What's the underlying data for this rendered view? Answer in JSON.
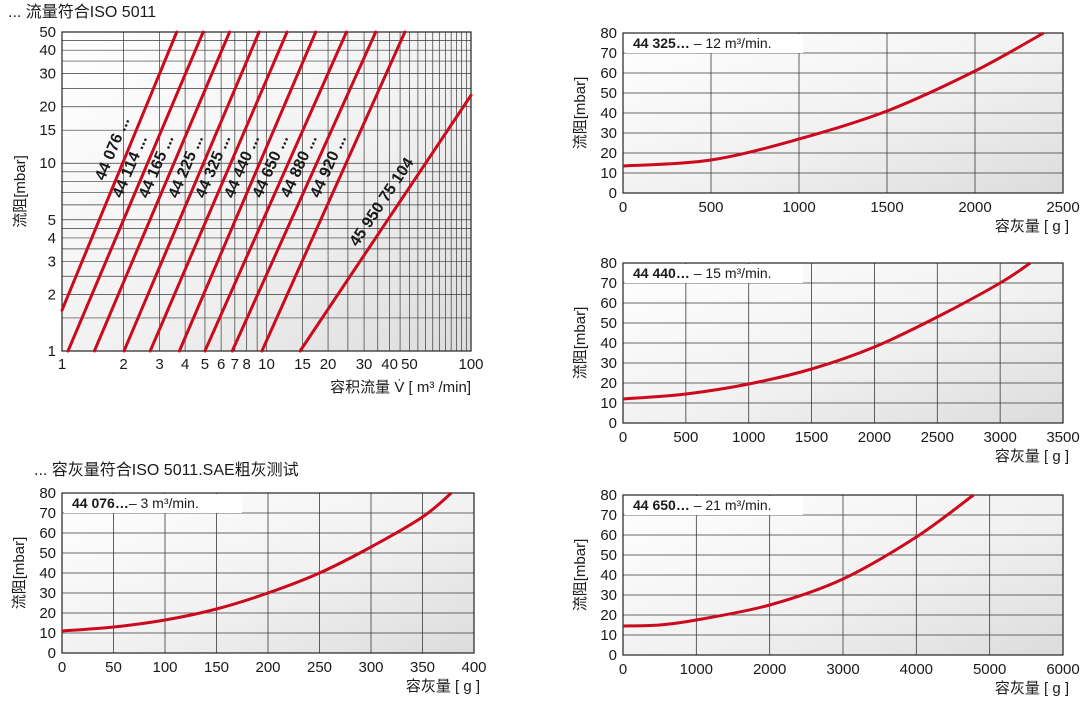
{
  "section_titles": {
    "top": "... 流量符合ISO 5011",
    "bottom": "... 容灰量符合ISO 5011.SAE粗灰测试"
  },
  "colors": {
    "curve": "#cc0a1e",
    "grid": "#3a3a3a",
    "panel_bg": "#e6e6e6"
  },
  "chart_data": [
    {
      "id": "flow",
      "type": "line",
      "scale": "log-log",
      "grid": true,
      "xlabel": "容积流量 V̇ [ m³ /min]",
      "ylabel": "流阻[mbar]",
      "xlim": [
        1,
        100
      ],
      "ylim": [
        1,
        50
      ],
      "x_ticks": [
        {
          "v": 1,
          "t": "1"
        },
        {
          "v": 2,
          "t": "2"
        },
        {
          "v": 3,
          "t": "3"
        },
        {
          "v": 4,
          "t": "4"
        },
        {
          "v": 5,
          "t": "5"
        },
        {
          "v": 6,
          "t": "6"
        },
        {
          "v": 7,
          "t": "7"
        },
        {
          "v": 8,
          "t": "8"
        },
        {
          "v": 10,
          "t": "10"
        },
        {
          "v": 15,
          "t": "15"
        },
        {
          "v": 20,
          "t": "20"
        },
        {
          "v": 30,
          "t": "30"
        },
        {
          "v": 40,
          "t": "40"
        },
        {
          "v": 50,
          "t": "50"
        },
        {
          "v": 100,
          "t": "100"
        }
      ],
      "y_ticks": [
        {
          "v": 1,
          "t": "1"
        },
        {
          "v": 2,
          "t": "2"
        },
        {
          "v": 3,
          "t": "3"
        },
        {
          "v": 4,
          "t": "4"
        },
        {
          "v": 5,
          "t": "5"
        },
        {
          "v": 10,
          "t": "10"
        },
        {
          "v": 15,
          "t": "15"
        },
        {
          "v": 20,
          "t": "20"
        },
        {
          "v": 30,
          "t": "30"
        },
        {
          "v": 40,
          "t": "40"
        },
        {
          "v": 50,
          "t": "50"
        }
      ],
      "series": [
        {
          "name": "44 076 ...",
          "x": [
            1,
            3.64
          ],
          "y": [
            1.65,
            50
          ]
        },
        {
          "name": "44 114 ...",
          "x": [
            1.07,
            4.9
          ],
          "y": [
            1,
            50
          ]
        },
        {
          "name": "44 165 ...",
          "x": [
            1.44,
            6.6
          ],
          "y": [
            1,
            50
          ]
        },
        {
          "name": "44 225 ...",
          "x": [
            2.01,
            9.2
          ],
          "y": [
            1,
            50
          ]
        },
        {
          "name": "44 325 ...",
          "x": [
            2.7,
            12.6
          ],
          "y": [
            1,
            50
          ]
        },
        {
          "name": "44 440 ...",
          "x": [
            3.75,
            17.4
          ],
          "y": [
            1,
            50
          ]
        },
        {
          "name": "44 650 ...",
          "x": [
            5.0,
            24.6
          ],
          "y": [
            1,
            50
          ]
        },
        {
          "name": "44 880 ...",
          "x": [
            6.8,
            34.2
          ],
          "y": [
            1,
            50
          ]
        },
        {
          "name": "44 920 ...",
          "x": [
            9.5,
            47.5
          ],
          "y": [
            1,
            50
          ]
        },
        {
          "name": "45 950 75 104",
          "x": [
            14.6,
            100
          ],
          "y": [
            1,
            23
          ]
        }
      ]
    },
    {
      "id": "dust-44325",
      "type": "line",
      "grid": true,
      "legend_bold": "44 325…",
      "legend_text": " – 12 m³/min.",
      "xlabel": "容灰量 [ g ]",
      "ylabel": "流阻[mbar]",
      "xlim": [
        0,
        2500
      ],
      "ylim": [
        0,
        80
      ],
      "x_ticks": [
        0,
        500,
        1000,
        1500,
        2000,
        2500
      ],
      "y_ticks": [
        0,
        10,
        20,
        30,
        40,
        50,
        60,
        70,
        80
      ],
      "series": [
        {
          "x": [
            0,
            500,
            1000,
            1500,
            2000,
            2390
          ],
          "y": [
            13.5,
            16.5,
            27,
            41,
            61,
            80
          ]
        }
      ]
    },
    {
      "id": "dust-44440",
      "type": "line",
      "grid": true,
      "legend_bold": "44 440…",
      "legend_text": " – 15 m³/min.",
      "xlabel": "容灰量 [ g ]",
      "ylabel": "流阻[mbar]",
      "xlim": [
        0,
        3500
      ],
      "ylim": [
        0,
        80
      ],
      "x_ticks": [
        0,
        500,
        1000,
        1500,
        2000,
        2500,
        3000,
        3500
      ],
      "y_ticks": [
        0,
        10,
        20,
        30,
        40,
        50,
        60,
        70,
        80
      ],
      "series": [
        {
          "x": [
            0,
            500,
            1000,
            1500,
            2000,
            2500,
            3000,
            3240
          ],
          "y": [
            12,
            14.5,
            19.5,
            27,
            38,
            53,
            70,
            80
          ]
        }
      ]
    },
    {
      "id": "dust-44076",
      "type": "line",
      "grid": true,
      "legend_bold": "44 076…",
      "legend_text": "– 3 m³/min.",
      "xlabel": "容灰量 [ g ]",
      "ylabel": "流阻[mbar]",
      "xlim": [
        0,
        400
      ],
      "ylim": [
        0,
        80
      ],
      "x_ticks": [
        0,
        50,
        100,
        150,
        200,
        250,
        300,
        350,
        400
      ],
      "y_ticks": [
        0,
        10,
        20,
        30,
        40,
        50,
        60,
        70,
        80
      ],
      "series": [
        {
          "x": [
            0,
            50,
            100,
            150,
            200,
            250,
            300,
            350,
            378
          ],
          "y": [
            11,
            13,
            16.5,
            22,
            30,
            40,
            53,
            68,
            80
          ]
        }
      ]
    },
    {
      "id": "dust-44650",
      "type": "line",
      "grid": true,
      "legend_bold": "44 650…",
      "legend_text": " – 21 m³/min.",
      "xlabel": "容灰量 [ g ]",
      "ylabel": "流阻[mbar]",
      "xlim": [
        0,
        6000
      ],
      "ylim": [
        0,
        80
      ],
      "x_ticks": [
        0,
        1000,
        2000,
        3000,
        4000,
        5000,
        6000
      ],
      "y_ticks": [
        0,
        10,
        20,
        30,
        40,
        50,
        60,
        70,
        80
      ],
      "series": [
        {
          "x": [
            0,
            500,
            1000,
            2000,
            3000,
            4000,
            4780
          ],
          "y": [
            14.5,
            15,
            17.5,
            25,
            38,
            59,
            80
          ]
        }
      ]
    }
  ]
}
